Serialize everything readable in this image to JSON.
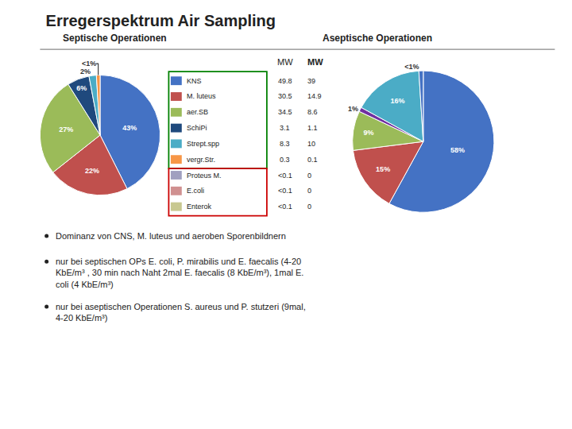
{
  "title": "Erregerspektrum Air Sampling",
  "chart_data": [
    {
      "type": "pie",
      "title": "Septische Operationen",
      "values": [
        43,
        22,
        27,
        6,
        2,
        1
      ],
      "value_labels": [
        "43%",
        "22%",
        "27%",
        "6%",
        "2%",
        "<1%"
      ],
      "colors": [
        "#4472C4",
        "#C0504D",
        "#9BBB59",
        "#1F497D",
        "#4BACC6",
        "#F79646"
      ],
      "data_labels": true
    },
    {
      "type": "pie",
      "title": "Aseptische Operationen",
      "values": [
        58,
        15,
        9,
        1,
        16,
        1
      ],
      "value_labels": [
        "58%",
        "15%",
        "9%",
        "1%",
        "16%",
        "<1%"
      ],
      "colors": [
        "#4472C4",
        "#C0504D",
        "#9BBB59",
        "#7030A0",
        "#4BACC6",
        "#4472C4"
      ],
      "data_labels": true
    },
    {
      "type": "table",
      "categories": [
        "KNS",
        "M. luteus",
        "aer.SB",
        "SchiPi",
        "Strept.spp",
        "vergr.Str.",
        "Proteus M.",
        "E.coli",
        "Enterok"
      ],
      "colors": [
        "#4472C4",
        "#C0504D",
        "#9BBB59",
        "#1F497D",
        "#4BACC6",
        "#F79646",
        "#A0A0C0",
        "#D09090",
        "#C8C890"
      ],
      "series": [
        {
          "name": "MW",
          "values": [
            49.8,
            30.5,
            34.5,
            3.1,
            8.3,
            0.3,
            null,
            null,
            null
          ],
          "value_labels": [
            null,
            null,
            null,
            null,
            null,
            null,
            "<0.1",
            "<0.1",
            "<0.1"
          ]
        },
        {
          "name": "MW",
          "values": [
            39,
            14.9,
            8.6,
            1.1,
            10,
            0.1,
            0,
            0,
            0
          ]
        }
      ]
    }
  ],
  "annotations": [
    [
      "Dominanz von CNS, M. luteus und aeroben Sporenbildnern"
    ],
    [
      "nur bei septischen OPs E. coli, P. mirabilis und E. faecalis (4-20",
      "KbE/m³ , 30 min nach Naht 2mal E. faecalis (8 KbE/m³), 1mal E.",
      "coli (4 KbE/m³)"
    ],
    [
      "nur bei aseptischen Operationen S. aureus und P. stutzeri (9mal,",
      "4-20 KbE/m³)"
    ]
  ]
}
